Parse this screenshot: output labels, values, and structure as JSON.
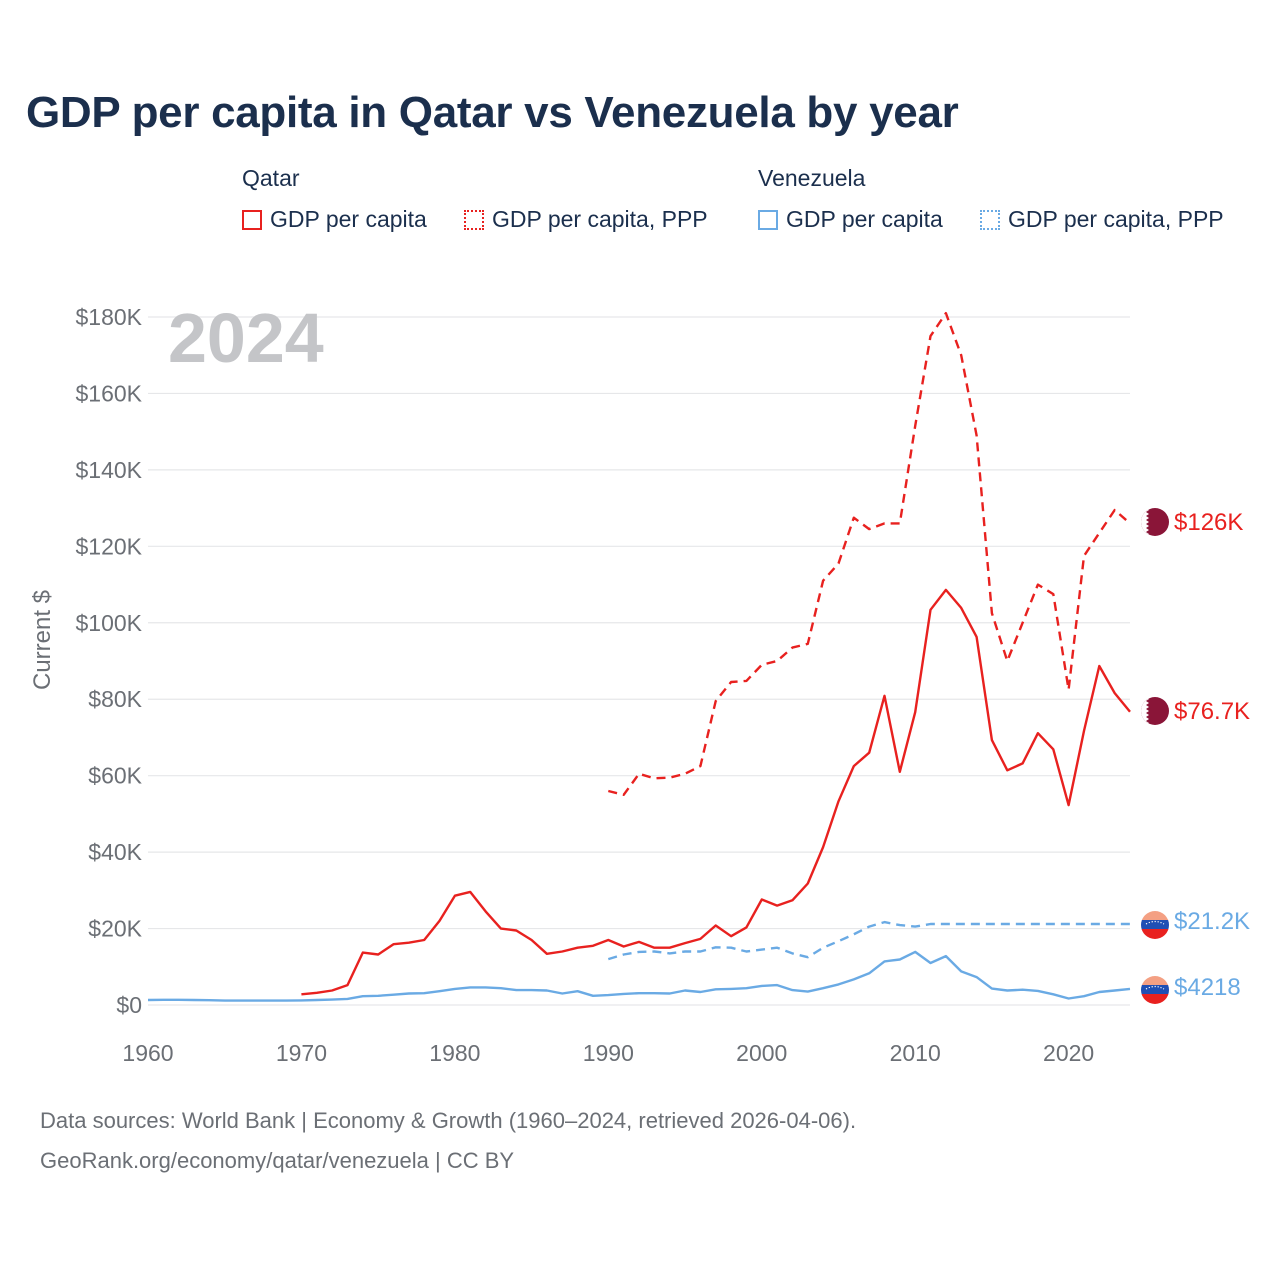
{
  "title": "GDP per capita in Qatar vs Venezuela by year",
  "legend": {
    "qatar": {
      "name": "Qatar",
      "gdp": "GDP per capita",
      "ppp": "GDP per capita, PPP",
      "color": "#e8211f"
    },
    "venezuela": {
      "name": "Venezuela",
      "gdp": "GDP per capita",
      "ppp": "GDP per capita, PPP",
      "color": "#6aaae4"
    }
  },
  "year_watermark": "2024",
  "end_labels": {
    "qatar_ppp": "$126K",
    "qatar_gdp": "$76.7K",
    "venezuela_ppp": "$21.2K",
    "venezuela_gdp": "$4218"
  },
  "source": {
    "line1": "Data sources: World Bank | Economy & Growth (1960–2024, retrieved 2026-04-06).",
    "line2": "GeoRank.org/economy/qatar/venezuela | CC BY"
  },
  "chart_data": {
    "type": "line",
    "title": "GDP per capita in Qatar vs Venezuela by year",
    "xlabel": "",
    "ylabel": "Current $",
    "xlim": [
      1960,
      2024
    ],
    "ylim": [
      0,
      180000
    ],
    "x_ticks": [
      1960,
      1970,
      1980,
      1990,
      2000,
      2010,
      2020
    ],
    "x_tick_labels": [
      "1960",
      "1970",
      "1980",
      "1990",
      "2000",
      "2010",
      "2020"
    ],
    "y_ticks": [
      0,
      20000,
      40000,
      60000,
      80000,
      100000,
      120000,
      140000,
      160000,
      180000
    ],
    "y_tick_labels": [
      "$0",
      "$20K",
      "$40K",
      "$60K",
      "$80K",
      "$100K",
      "$120K",
      "$140K",
      "$160K",
      "$180K"
    ],
    "grid": true,
    "series": [
      {
        "name": "Qatar GDP per capita",
        "color": "#e8211f",
        "dash": "solid",
        "x": [
          1970,
          1971,
          1972,
          1973,
          1974,
          1975,
          1976,
          1977,
          1978,
          1979,
          1980,
          1981,
          1982,
          1983,
          1984,
          1985,
          1986,
          1987,
          1988,
          1989,
          1990,
          1991,
          1992,
          1993,
          1994,
          1995,
          1996,
          1997,
          1998,
          1999,
          2000,
          2001,
          2002,
          2003,
          2004,
          2005,
          2006,
          2007,
          2008,
          2009,
          2010,
          2011,
          2012,
          2013,
          2014,
          2015,
          2016,
          2017,
          2018,
          2019,
          2020,
          2021,
          2022,
          2023,
          2024
        ],
        "values": [
          2800,
          3200,
          3800,
          5200,
          13700,
          13200,
          15900,
          16300,
          17000,
          22000,
          28600,
          29600,
          24500,
          20000,
          19500,
          17000,
          13400,
          14000,
          15000,
          15500,
          17000,
          15300,
          16500,
          15000,
          15000,
          16200,
          17300,
          20800,
          18000,
          20300,
          27600,
          26000,
          27400,
          31800,
          41300,
          53300,
          62500,
          66000,
          80900,
          61000,
          76600,
          103400,
          108600,
          103900,
          96300,
          69300,
          61400,
          63200,
          71100,
          66900,
          52300,
          71700,
          88700,
          81600,
          76700
        ]
      },
      {
        "name": "Qatar GDP per capita, PPP",
        "color": "#e8211f",
        "dash": "dashed",
        "x": [
          1990,
          1991,
          1992,
          1993,
          1994,
          1995,
          1996,
          1997,
          1998,
          1999,
          2000,
          2001,
          2002,
          2003,
          2004,
          2005,
          2006,
          2007,
          2008,
          2009,
          2010,
          2011,
          2012,
          2013,
          2014,
          2015,
          2016,
          2017,
          2018,
          2019,
          2020,
          2021,
          2022,
          2023,
          2024
        ],
        "values": [
          56000,
          55000,
          60500,
          59300,
          59500,
          60500,
          62500,
          79500,
          84500,
          84800,
          89000,
          90000,
          93500,
          94500,
          111000,
          115500,
          127500,
          124500,
          126000,
          126000,
          151500,
          175000,
          181000,
          170000,
          149000,
          102500,
          90000,
          100000,
          110000,
          107500,
          82500,
          117500,
          123500,
          129500,
          126000
        ]
      },
      {
        "name": "Venezuela GDP per capita",
        "color": "#6aaae4",
        "dash": "solid",
        "x": [
          1960,
          1961,
          1962,
          1963,
          1964,
          1965,
          1966,
          1967,
          1968,
          1969,
          1970,
          1971,
          1972,
          1973,
          1974,
          1975,
          1976,
          1977,
          1978,
          1979,
          1980,
          1981,
          1982,
          1983,
          1984,
          1985,
          1986,
          1987,
          1988,
          1989,
          1990,
          1991,
          1992,
          1993,
          1994,
          1995,
          1996,
          1997,
          1998,
          1999,
          2000,
          2001,
          2002,
          2003,
          2004,
          2005,
          2006,
          2007,
          2008,
          2009,
          2010,
          2011,
          2012,
          2013,
          2014,
          2015,
          2016,
          2017,
          2018,
          2019,
          2020,
          2021,
          2022,
          2023,
          2024
        ],
        "values": [
          1300,
          1350,
          1350,
          1300,
          1250,
          1150,
          1150,
          1150,
          1150,
          1150,
          1200,
          1300,
          1400,
          1600,
          2300,
          2400,
          2700,
          3000,
          3100,
          3600,
          4200,
          4600,
          4600,
          4400,
          3900,
          3900,
          3800,
          3000,
          3600,
          2400,
          2600,
          2900,
          3100,
          3100,
          3000,
          3800,
          3400,
          4100,
          4200,
          4400,
          5000,
          5200,
          3900,
          3500,
          4400,
          5400,
          6700,
          8300,
          11400,
          11900,
          13900,
          11000,
          12800,
          8800,
          7300,
          4300,
          3800,
          4000,
          3700,
          2800,
          1700,
          2300,
          3400,
          3800,
          4218
        ]
      },
      {
        "name": "Venezuela GDP per capita, PPP",
        "color": "#6aaae4",
        "dash": "dashed",
        "x": [
          1990,
          1991,
          1992,
          1993,
          1994,
          1995,
          1996,
          1997,
          1998,
          1999,
          2000,
          2001,
          2002,
          2003,
          2004,
          2005,
          2006,
          2007,
          2008,
          2009,
          2010,
          2011,
          2012,
          2013,
          2014,
          2015,
          2016,
          2017,
          2018,
          2019,
          2020,
          2021,
          2022,
          2023,
          2024
        ],
        "values": [
          12000,
          13200,
          13900,
          14000,
          13500,
          14000,
          14000,
          15100,
          15000,
          14000,
          14500,
          15000,
          13500,
          12500,
          15000,
          16700,
          18500,
          20500,
          21700,
          20900,
          20500,
          21200,
          21200,
          21200,
          21200,
          21200,
          21200,
          21200,
          21200,
          21200,
          21200,
          21200,
          21200,
          21200,
          21200
        ]
      }
    ]
  }
}
